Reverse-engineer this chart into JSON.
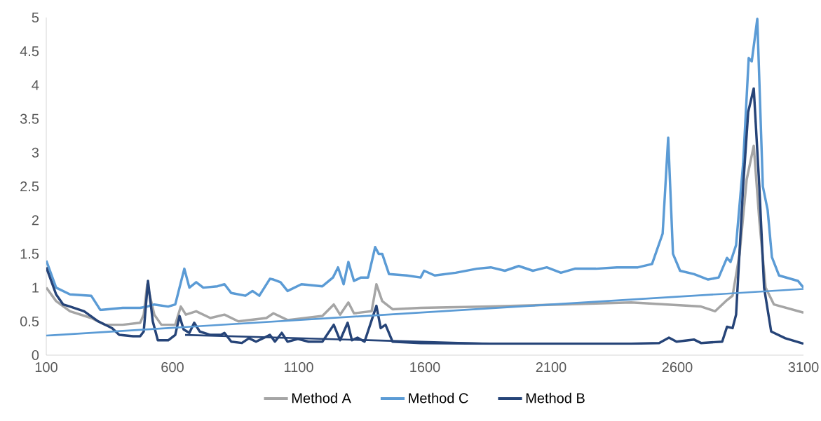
{
  "chart_data": {
    "type": "line",
    "xlim": [
      100,
      3100
    ],
    "ylim": [
      0,
      5
    ],
    "xticks": [
      100,
      600,
      1100,
      1600,
      2100,
      2600,
      3100
    ],
    "yticks": [
      0,
      0.5,
      1,
      1.5,
      2,
      2.5,
      3,
      3.5,
      4,
      4.5,
      5
    ],
    "grid": false,
    "legend": "bottom",
    "marker": "none",
    "line_style": "solid",
    "series": [
      {
        "name": "Method A",
        "color": "#a5a5a5",
        "x": [
          100,
          139,
          194,
          278,
          333,
          403,
          472,
          486,
          500,
          528,
          556,
          611,
          633,
          653,
          694,
          750,
          806,
          861,
          972,
          1000,
          1056,
          1194,
          1239,
          1264,
          1297,
          1319,
          1389,
          1408,
          1431,
          1472,
          1583,
          1861,
          2139,
          2417,
          2694,
          2750,
          2792,
          2819,
          2847,
          2875,
          2903,
          2925,
          2950,
          2983,
          3100
        ],
        "values": [
          1.0,
          0.8,
          0.65,
          0.55,
          0.45,
          0.45,
          0.48,
          0.6,
          1.05,
          0.6,
          0.45,
          0.45,
          0.72,
          0.6,
          0.65,
          0.55,
          0.6,
          0.5,
          0.55,
          0.62,
          0.52,
          0.58,
          0.75,
          0.6,
          0.78,
          0.62,
          0.65,
          1.05,
          0.8,
          0.68,
          0.7,
          0.72,
          0.75,
          0.78,
          0.72,
          0.65,
          0.8,
          0.88,
          1.5,
          2.6,
          3.1,
          2.0,
          1.0,
          0.75,
          0.63
        ]
      },
      {
        "name": "Method C",
        "color": "#5b9bd5",
        "x": [
          100,
          139,
          194,
          278,
          314,
          403,
          472,
          500,
          528,
          583,
          611,
          647,
          667,
          694,
          722,
          778,
          806,
          833,
          889,
          917,
          944,
          986,
          1000,
          1028,
          1056,
          1111,
          1194,
          1236,
          1256,
          1278,
          1297,
          1319,
          1347,
          1375,
          1403,
          1417,
          1431,
          1458,
          1528,
          1583,
          1597,
          1639,
          1722,
          1806,
          1861,
          1917,
          1972,
          2028,
          2083,
          2139,
          2194,
          2278,
          2361,
          2444,
          2500,
          2542,
          2564,
          2583,
          2611,
          2667,
          2722,
          2764,
          2797,
          2811,
          2833,
          2861,
          2883,
          2895,
          2917,
          2939,
          2958,
          2975,
          3003,
          3078,
          3100
        ],
        "values": [
          1.4,
          1.0,
          0.9,
          0.88,
          0.67,
          0.7,
          0.7,
          0.72,
          0.75,
          0.72,
          0.75,
          1.28,
          1.0,
          1.08,
          1.0,
          1.02,
          1.05,
          0.92,
          0.88,
          0.95,
          0.88,
          1.13,
          1.12,
          1.08,
          0.95,
          1.05,
          1.02,
          1.15,
          1.3,
          1.05,
          1.38,
          1.1,
          1.15,
          1.15,
          1.6,
          1.5,
          1.5,
          1.2,
          1.18,
          1.15,
          1.25,
          1.18,
          1.22,
          1.28,
          1.3,
          1.25,
          1.32,
          1.25,
          1.3,
          1.22,
          1.28,
          1.28,
          1.3,
          1.3,
          1.35,
          1.8,
          3.22,
          1.5,
          1.25,
          1.2,
          1.12,
          1.15,
          1.44,
          1.38,
          1.63,
          2.84,
          4.4,
          4.35,
          4.98,
          2.5,
          2.15,
          1.45,
          1.18,
          1.1,
          1.0
        ]
      },
      {
        "name": "Method B",
        "color": "#264478",
        "x": [
          100,
          139,
          167,
          194,
          250,
          306,
          361,
          389,
          444,
          472,
          486,
          503,
          522,
          542,
          583,
          611,
          628,
          644,
          667,
          686,
          708,
          750,
          792,
          806,
          833,
          875,
          903,
          931,
          986,
          1006,
          1033,
          1056,
          1097,
          1139,
          1194,
          1239,
          1264,
          1294,
          1311,
          1333,
          1361,
          1408,
          1425,
          1444,
          1472,
          1583,
          1861,
          2417,
          2528,
          2567,
          2597,
          2667,
          2694,
          2778,
          2797,
          2819,
          2833,
          2861,
          2881,
          2903,
          2925,
          2944,
          2972,
          3028,
          3100
        ],
        "values": [
          1.3,
          0.9,
          0.75,
          0.72,
          0.65,
          0.5,
          0.4,
          0.3,
          0.28,
          0.28,
          0.35,
          1.1,
          0.5,
          0.22,
          0.22,
          0.3,
          0.58,
          0.38,
          0.33,
          0.48,
          0.35,
          0.3,
          0.3,
          0.33,
          0.2,
          0.18,
          0.25,
          0.2,
          0.3,
          0.2,
          0.33,
          0.2,
          0.24,
          0.2,
          0.2,
          0.45,
          0.22,
          0.48,
          0.22,
          0.26,
          0.2,
          0.73,
          0.4,
          0.45,
          0.2,
          0.18,
          0.17,
          0.17,
          0.18,
          0.26,
          0.2,
          0.23,
          0.18,
          0.2,
          0.42,
          0.4,
          0.6,
          2.5,
          3.6,
          3.95,
          2.5,
          1.0,
          0.35,
          0.25,
          0.17
        ]
      },
      {
        "color": "#5b9bd5",
        "x": [
          100,
          3100
        ],
        "values": [
          0.29,
          0.98
        ]
      },
      {
        "color": "#264478",
        "x": [
          650,
          1850
        ],
        "values": [
          0.3,
          0.17
        ]
      }
    ]
  }
}
